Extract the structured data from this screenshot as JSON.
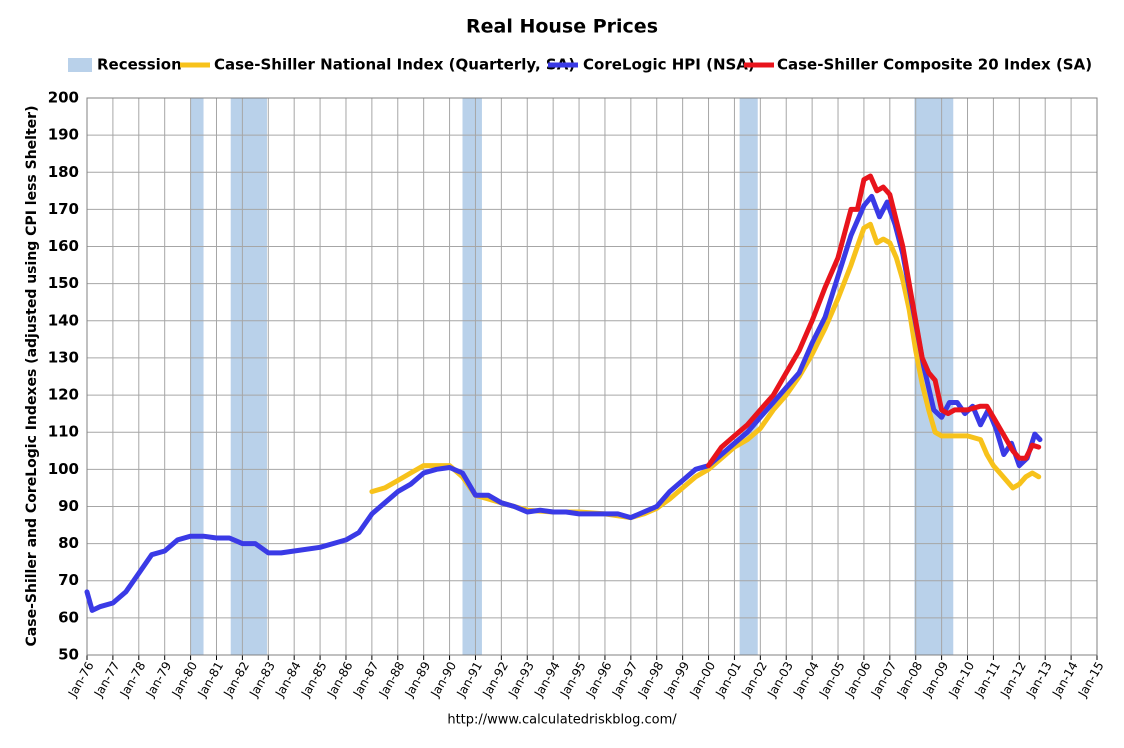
{
  "chart_data": {
    "type": "line",
    "title": "Real House Prices",
    "y_label": "Case-Shiller and CoreLogic Indexes (adjusted using CPI less Shelter)",
    "source": "http://www.calculatedriskblog.com/",
    "recessions": {
      "name": "Recession",
      "color": "#b9d1ea",
      "periods": [
        [
          1980.0,
          1980.5
        ],
        [
          1981.55,
          1982.95
        ],
        [
          1990.5,
          1991.25
        ],
        [
          2001.2,
          2001.9
        ],
        [
          2007.95,
          2009.45
        ]
      ]
    },
    "series": [
      {
        "name": "Case-Shiller National Index (Quarterly, SA)",
        "color": "#f7c21b",
        "x": [
          1987,
          1987.5,
          1988,
          1988.5,
          1989,
          1989.5,
          1990,
          1990.5,
          1991,
          1991.5,
          1992,
          1993,
          1994,
          1995,
          1996,
          1997,
          1997.5,
          1998,
          1998.5,
          1999,
          1999.5,
          2000,
          2000.5,
          2001,
          2001.5,
          2002,
          2002.5,
          2003,
          2003.5,
          2004,
          2004.5,
          2005,
          2005.5,
          2005.75,
          2006,
          2006.25,
          2006.5,
          2006.75,
          2007,
          2007.25,
          2007.5,
          2007.75,
          2008,
          2008.25,
          2008.5,
          2008.75,
          2009,
          2009.5,
          2010,
          2010.5,
          2010.75,
          2011,
          2011.25,
          2011.5,
          2011.75,
          2012,
          2012.25,
          2012.5,
          2012.75
        ],
        "values": [
          94,
          95,
          97,
          99,
          101,
          101,
          101,
          98,
          93,
          92,
          91,
          89,
          88.5,
          88.5,
          88,
          87,
          88,
          89.5,
          92,
          95,
          98,
          100,
          103,
          106,
          108,
          111,
          116,
          120,
          125,
          131,
          138,
          146,
          155,
          160,
          165,
          166,
          161,
          162,
          161,
          157,
          151,
          143,
          132,
          123,
          116,
          110,
          109,
          109,
          109,
          108,
          104,
          101,
          99,
          97,
          95,
          96,
          98,
          99,
          98
        ]
      },
      {
        "name": "CoreLogic HPI (NSA)",
        "color": "#3a3ae6",
        "x": [
          1976,
          1976.2,
          1976.5,
          1977,
          1977.5,
          1978,
          1978.5,
          1979,
          1979.5,
          1980,
          1980.5,
          1981,
          1981.5,
          1982,
          1982.5,
          1983,
          1983.5,
          1984,
          1985,
          1985.5,
          1986,
          1986.5,
          1987,
          1987.5,
          1988,
          1988.5,
          1989,
          1989.5,
          1990,
          1990.5,
          1991,
          1991.5,
          1992,
          1992.5,
          1993,
          1993.5,
          1994,
          1994.5,
          1995,
          1995.5,
          1996,
          1996.5,
          1997,
          1997.5,
          1998,
          1998.5,
          1999,
          1999.5,
          2000,
          2000.5,
          2001,
          2001.5,
          2002,
          2002.5,
          2003,
          2003.5,
          2004,
          2004.5,
          2005,
          2005.5,
          2006,
          2006.3,
          2006.6,
          2006.9,
          2007.2,
          2007.5,
          2007.9,
          2008.3,
          2008.7,
          2009,
          2009.3,
          2009.6,
          2009.9,
          2010.2,
          2010.5,
          2010.8,
          2011.1,
          2011.4,
          2011.7,
          2012,
          2012.3,
          2012.6,
          2012.8
        ],
        "values": [
          67,
          62,
          63,
          64,
          67,
          72,
          77,
          78,
          81,
          82,
          82,
          81.5,
          81.5,
          80,
          80,
          77.5,
          77.5,
          78,
          79,
          80,
          81,
          83,
          88,
          91,
          94,
          96,
          99,
          100,
          100.5,
          99,
          93,
          93,
          91,
          90,
          88.5,
          89,
          88.5,
          88.5,
          88,
          88,
          88,
          88,
          87,
          88.5,
          90,
          94,
          97,
          100,
          101,
          104,
          107,
          110,
          114,
          118,
          122,
          126,
          134,
          141,
          152,
          163,
          171,
          173.5,
          168,
          172,
          166,
          158,
          143,
          128,
          116,
          114,
          118,
          118,
          115,
          117,
          112,
          116,
          111,
          104,
          107,
          101,
          103,
          109.5,
          108
        ]
      },
      {
        "name": "Case-Shiller Composite 20 Index (SA)",
        "color": "#e8141c",
        "x": [
          2000,
          2000.5,
          2001,
          2001.5,
          2002,
          2002.5,
          2003,
          2003.5,
          2004,
          2004.5,
          2005,
          2005.5,
          2005.75,
          2006,
          2006.25,
          2006.5,
          2006.75,
          2007,
          2007.25,
          2007.5,
          2007.75,
          2008,
          2008.25,
          2008.5,
          2008.75,
          2009,
          2009.25,
          2009.5,
          2010,
          2010.5,
          2010.75,
          2011,
          2011.5,
          2011.75,
          2012,
          2012.25,
          2012.5,
          2012.75
        ],
        "values": [
          101,
          106,
          109,
          112,
          116,
          120,
          126,
          132,
          140,
          149,
          157,
          170,
          170,
          178,
          179,
          175,
          176,
          174,
          167,
          160,
          150,
          140,
          130,
          126,
          124,
          116,
          115,
          116,
          116,
          117,
          117,
          114,
          108,
          105,
          103,
          103,
          106.5,
          106
        ]
      }
    ],
    "xlim": [
      1976,
      2015
    ],
    "xticks": [
      {
        "value": 1976,
        "label": "Jan-76"
      },
      {
        "value": 1977,
        "label": "Jan-77"
      },
      {
        "value": 1978,
        "label": "Jan-78"
      },
      {
        "value": 1979,
        "label": "Jan-79"
      },
      {
        "value": 1980,
        "label": "Jan-80"
      },
      {
        "value": 1981,
        "label": "Jan-81"
      },
      {
        "value": 1982,
        "label": "Jan-82"
      },
      {
        "value": 1983,
        "label": "Jan-83"
      },
      {
        "value": 1984,
        "label": "Jan-84"
      },
      {
        "value": 1985,
        "label": "Jan-85"
      },
      {
        "value": 1986,
        "label": "Jan-86"
      },
      {
        "value": 1987,
        "label": "Jan-87"
      },
      {
        "value": 1988,
        "label": "Jan-88"
      },
      {
        "value": 1989,
        "label": "Jan-89"
      },
      {
        "value": 1990,
        "label": "Jan-90"
      },
      {
        "value": 1991,
        "label": "Jan-91"
      },
      {
        "value": 1992,
        "label": "Jan-92"
      },
      {
        "value": 1993,
        "label": "Jan-93"
      },
      {
        "value": 1994,
        "label": "Jan-94"
      },
      {
        "value": 1995,
        "label": "Jan-95"
      },
      {
        "value": 1996,
        "label": "Jan-96"
      },
      {
        "value": 1997,
        "label": "Jan-97"
      },
      {
        "value": 1998,
        "label": "Jan-98"
      },
      {
        "value": 1999,
        "label": "Jan-99"
      },
      {
        "value": 2000,
        "label": "Jan-00"
      },
      {
        "value": 2001,
        "label": "Jan-01"
      },
      {
        "value": 2002,
        "label": "Jan-02"
      },
      {
        "value": 2003,
        "label": "Jan-03"
      },
      {
        "value": 2004,
        "label": "Jan-04"
      },
      {
        "value": 2005,
        "label": "Jan-05"
      },
      {
        "value": 2006,
        "label": "Jan-06"
      },
      {
        "value": 2007,
        "label": "Jan-07"
      },
      {
        "value": 2008,
        "label": "Jan-08"
      },
      {
        "value": 2009,
        "label": "Jan-09"
      },
      {
        "value": 2010,
        "label": "Jan-10"
      },
      {
        "value": 2011,
        "label": "Jan-11"
      },
      {
        "value": 2012,
        "label": "Jan-12"
      },
      {
        "value": 2013,
        "label": "Jan-13"
      },
      {
        "value": 2014,
        "label": "Jan-14"
      },
      {
        "value": 2015,
        "label": "Jan-15"
      }
    ],
    "ylim": [
      50,
      200
    ],
    "yticks": [
      50,
      60,
      70,
      80,
      90,
      100,
      110,
      120,
      130,
      140,
      150,
      160,
      170,
      180,
      190,
      200
    ],
    "grid": true
  }
}
